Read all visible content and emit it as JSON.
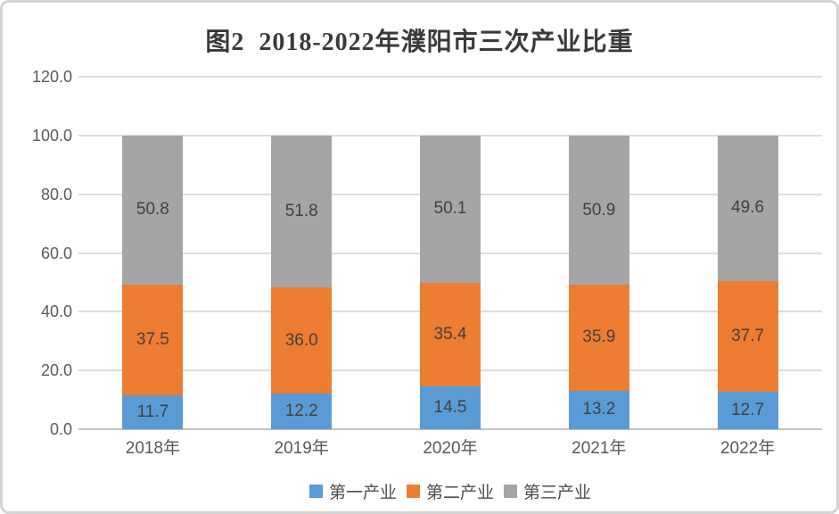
{
  "title": "图2  2018-2022年濮阳市三次产业比重",
  "chart_data": {
    "type": "bar",
    "stacked": true,
    "title": "图2  2018-2022年濮阳市三次产业比重",
    "categories": [
      "2018年",
      "2019年",
      "2020年",
      "2021年",
      "2022年"
    ],
    "series": [
      {
        "name": "第一产业",
        "color": "#5B9BD5",
        "values": [
          11.7,
          12.2,
          14.5,
          13.2,
          12.7
        ]
      },
      {
        "name": "第二产业",
        "color": "#ED7D31",
        "values": [
          37.5,
          36.0,
          35.4,
          35.9,
          37.7
        ]
      },
      {
        "name": "第三产业",
        "color": "#A5A5A5",
        "values": [
          50.8,
          51.8,
          50.1,
          50.9,
          49.6
        ]
      }
    ],
    "ylim": [
      0,
      120
    ],
    "ytick_step": 20,
    "ytick_labels": [
      "0.0",
      "20.0",
      "40.0",
      "60.0",
      "80.0",
      "100.0",
      "120.0"
    ],
    "grid": true,
    "data_labels": true,
    "data_label_format": "one-decimal",
    "legend_position": "bottom",
    "xlabel": "",
    "ylabel": ""
  }
}
